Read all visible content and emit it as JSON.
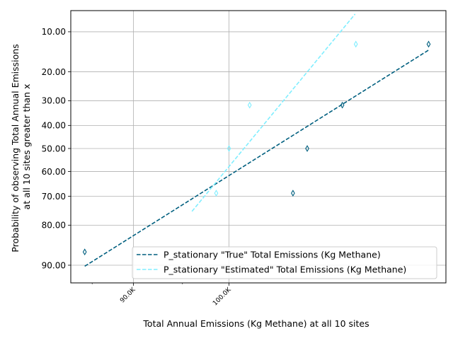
{
  "chart_data": {
    "type": "scatter",
    "xlabel": "Total Annual Emissions (Kg Methane) at all 10 sites",
    "ylabel_lines": [
      "Probability of observing Total Annual Emissions",
      "at all 10 sites greater than x"
    ],
    "x_scale": "log",
    "y_scale": "normal-probability",
    "xlim": [
      84000,
      127000
    ],
    "ylim": [
      93.0,
      6.5
    ],
    "x_ticks": [
      {
        "value": 90000,
        "label": "90.0K"
      },
      {
        "value": 100000,
        "label": "100.0K"
      }
    ],
    "x_minor_ticks": [
      86000,
      95000
    ],
    "y_ticks": [
      {
        "value": 10,
        "label": "10.00"
      },
      {
        "value": 20,
        "label": "20.00"
      },
      {
        "value": 30,
        "label": "30.00"
      },
      {
        "value": 40,
        "label": "40.00"
      },
      {
        "value": 50,
        "label": "50.00"
      },
      {
        "value": 60,
        "label": "60.00"
      },
      {
        "value": 70,
        "label": "70.00"
      },
      {
        "value": 80,
        "label": "80.00"
      },
      {
        "value": 90,
        "label": "90.00"
      }
    ],
    "grid": true,
    "legend_position": "bottom-right",
    "series": [
      {
        "name": "P_stationary \"True\" Total Emissions (Kg Methane)",
        "color": "#005f7f",
        "points": [
          {
            "x": 85300,
            "y": 87.2
          },
          {
            "x": 107300,
            "y": 68.8
          },
          {
            "x": 109000,
            "y": 50.0
          },
          {
            "x": 113300,
            "y": 31.7
          },
          {
            "x": 124600,
            "y": 12.6
          }
        ],
        "fit_line": [
          {
            "x": 85300,
            "y": 90.2
          },
          {
            "x": 124600,
            "y": 14.0
          }
        ]
      },
      {
        "name": "P_stationary \"Estimated\" Total Emissions (Kg Methane)",
        "color": "#80eeff",
        "points": [
          {
            "x": 98600,
            "y": 68.8
          },
          {
            "x": 100000,
            "y": 50.0
          },
          {
            "x": 102300,
            "y": 31.7
          },
          {
            "x": 115000,
            "y": 12.6
          }
        ],
        "fit_line": [
          {
            "x": 96000,
            "y": 75.5
          },
          {
            "x": 114900,
            "y": 7.0
          }
        ]
      }
    ]
  }
}
